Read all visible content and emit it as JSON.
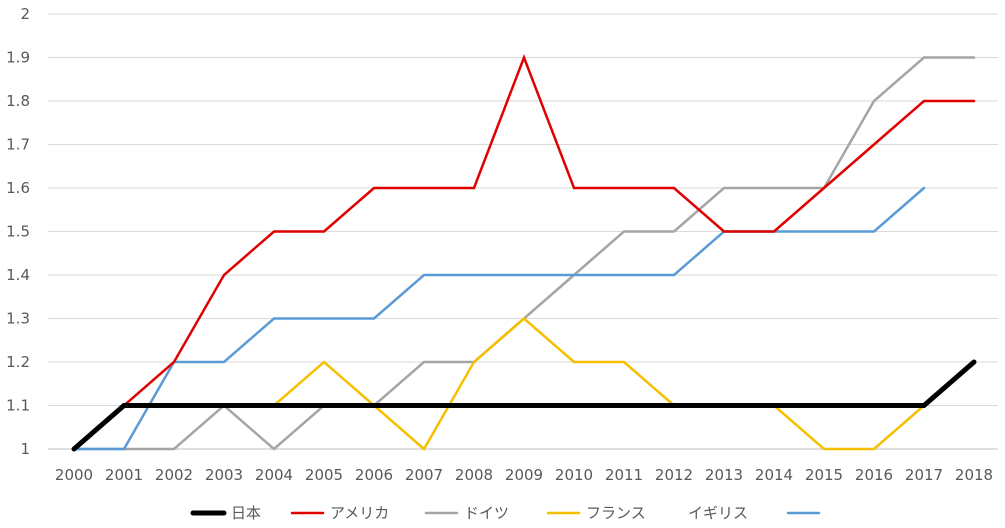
{
  "chart_data": {
    "type": "line",
    "x": [
      "2000",
      "2001",
      "2002",
      "2003",
      "2004",
      "2005",
      "2006",
      "2007",
      "2008",
      "2009",
      "2010",
      "2011",
      "2012",
      "2013",
      "2014",
      "2015",
      "2016",
      "2017",
      "2018"
    ],
    "ylim": [
      1,
      2
    ],
    "yticks": [
      "1",
      "1.1",
      "1.2",
      "1.3",
      "1.4",
      "1.5",
      "1.6",
      "1.7",
      "1.8",
      "1.9",
      "2"
    ],
    "grid": true,
    "legend_position": "bottom",
    "legend_text": "イギリス",
    "series": [
      {
        "name": "日本",
        "color": "#000000",
        "values": [
          1.0,
          1.1,
          1.1,
          1.1,
          1.1,
          1.1,
          1.1,
          1.1,
          1.1,
          1.1,
          1.1,
          1.1,
          1.1,
          1.1,
          1.1,
          1.1,
          1.1,
          1.1,
          1.2
        ]
      },
      {
        "name": "アメリカ",
        "color": "#e00000",
        "values": [
          1.0,
          1.1,
          1.2,
          1.4,
          1.5,
          1.5,
          1.6,
          1.6,
          1.6,
          1.9,
          1.6,
          1.6,
          1.6,
          1.5,
          1.5,
          1.6,
          1.7,
          1.8,
          1.8
        ]
      },
      {
        "name": "ドイツ",
        "color": "#a5a5a5",
        "values": [
          1.0,
          1.0,
          1.0,
          1.1,
          1.0,
          1.1,
          1.1,
          1.2,
          1.2,
          1.3,
          1.4,
          1.5,
          1.5,
          1.6,
          1.6,
          1.6,
          1.8,
          1.9,
          1.9
        ]
      },
      {
        "name": "フランス",
        "color": "#f5c000",
        "values": [
          1.0,
          1.1,
          1.1,
          1.1,
          1.1,
          1.2,
          1.1,
          1.0,
          1.2,
          1.3,
          1.2,
          1.2,
          1.1,
          1.1,
          1.1,
          1.0,
          1.0,
          1.1,
          null
        ]
      },
      {
        "name": "",
        "color": "#5b9bd5",
        "values": [
          1.0,
          1.0,
          1.2,
          1.2,
          1.3,
          1.3,
          1.3,
          1.4,
          1.4,
          1.4,
          1.4,
          1.4,
          1.4,
          1.5,
          1.5,
          1.5,
          1.5,
          1.6,
          null
        ]
      }
    ]
  }
}
